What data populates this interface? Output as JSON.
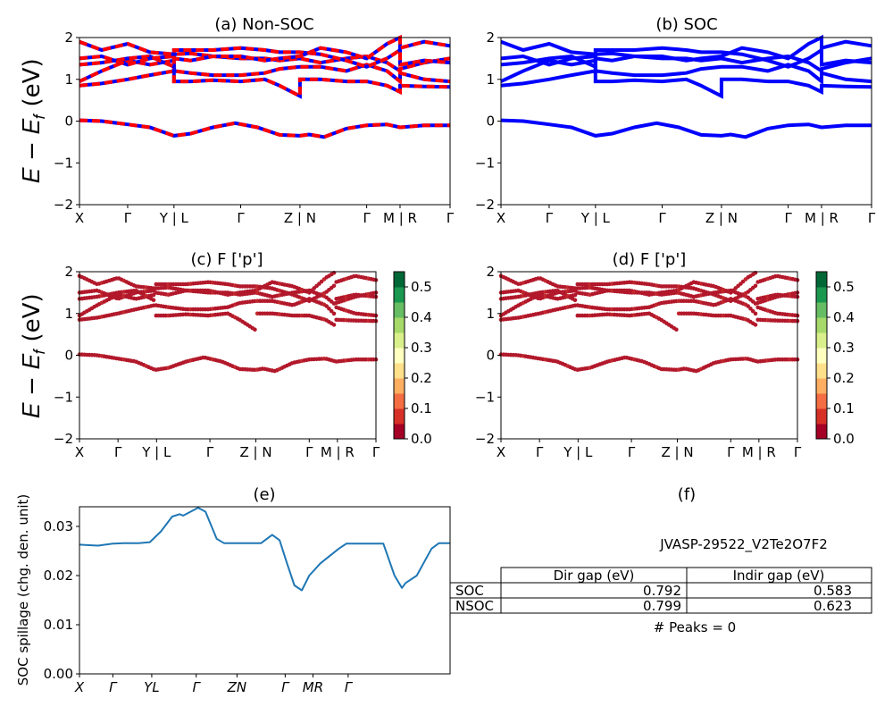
{
  "colors": {
    "nonsoc_primary": "#ff0000",
    "nonsoc_dash": "#0000ff",
    "soc": "#0000ff",
    "spillage": "#1f77b4",
    "colormap": "RdYlGn"
  },
  "chart_data": [
    {
      "id": "a",
      "type": "line",
      "title": "(a) Non-SOC",
      "ylabel": "E − E_f (eV)",
      "ylim": [
        -2,
        2
      ],
      "yticks": [
        "−2",
        "−1",
        "0",
        "1",
        "2"
      ],
      "xticks": [
        {
          "label": "X",
          "pos": 0.0
        },
        {
          "label": "Γ",
          "pos": 0.13
        },
        {
          "label": "Y | L",
          "pos": 0.255
        },
        {
          "label": "Γ",
          "pos": 0.435
        },
        {
          "label": "Z | N",
          "pos": 0.595
        },
        {
          "label": "Γ",
          "pos": 0.775
        },
        {
          "label": "M | R",
          "pos": 0.865
        },
        {
          "label": "Γ",
          "pos": 1.0
        }
      ],
      "series": [
        {
          "values": [
            [
              0,
              0.02
            ],
            [
              0.06,
              0.0
            ],
            [
              0.13,
              -0.08
            ],
            [
              0.19,
              -0.15
            ],
            [
              0.255,
              -0.35
            ],
            [
              0.3,
              -0.3
            ],
            [
              0.36,
              -0.15
            ],
            [
              0.42,
              -0.05
            ],
            [
              0.48,
              -0.15
            ],
            [
              0.54,
              -0.33
            ],
            [
              0.595,
              -0.35
            ],
            [
              0.62,
              -0.32
            ],
            [
              0.66,
              -0.38
            ],
            [
              0.72,
              -0.18
            ],
            [
              0.775,
              -0.1
            ],
            [
              0.83,
              -0.08
            ],
            [
              0.865,
              -0.15
            ],
            [
              0.93,
              -0.1
            ],
            [
              1.0,
              -0.1
            ]
          ]
        },
        {
          "values": [
            [
              0,
              0.85
            ],
            [
              0.06,
              0.9
            ],
            [
              0.13,
              1.0
            ],
            [
              0.19,
              1.1
            ],
            [
              0.255,
              1.2
            ],
            [
              0.255,
              0.95
            ],
            [
              0.3,
              0.95
            ],
            [
              0.36,
              0.98
            ],
            [
              0.435,
              0.95
            ],
            [
              0.5,
              1.0
            ],
            [
              0.54,
              0.85
            ],
            [
              0.595,
              0.6
            ],
            [
              0.595,
              1.0
            ],
            [
              0.65,
              1.0
            ],
            [
              0.72,
              0.95
            ],
            [
              0.775,
              0.95
            ],
            [
              0.83,
              0.85
            ],
            [
              0.865,
              0.7
            ],
            [
              0.865,
              0.85
            ],
            [
              0.93,
              0.83
            ],
            [
              1.0,
              0.82
            ]
          ]
        },
        {
          "values": [
            [
              0,
              0.95
            ],
            [
              0.06,
              1.2
            ],
            [
              0.13,
              1.45
            ],
            [
              0.19,
              1.35
            ],
            [
              0.255,
              1.45
            ],
            [
              0.255,
              1.2
            ],
            [
              0.3,
              1.15
            ],
            [
              0.36,
              1.1
            ],
            [
              0.435,
              1.1
            ],
            [
              0.5,
              1.15
            ],
            [
              0.54,
              1.25
            ],
            [
              0.595,
              1.3
            ],
            [
              0.65,
              1.3
            ],
            [
              0.72,
              1.2
            ],
            [
              0.775,
              1.35
            ],
            [
              0.83,
              1.2
            ],
            [
              0.865,
              0.95
            ],
            [
              0.865,
              1.15
            ],
            [
              0.93,
              1.0
            ],
            [
              1.0,
              0.95
            ]
          ]
        },
        {
          "values": [
            [
              0,
              1.35
            ],
            [
              0.06,
              1.4
            ],
            [
              0.13,
              1.5
            ],
            [
              0.19,
              1.55
            ],
            [
              0.255,
              1.3
            ],
            [
              0.255,
              1.6
            ],
            [
              0.3,
              1.62
            ],
            [
              0.36,
              1.55
            ],
            [
              0.435,
              1.5
            ],
            [
              0.5,
              1.5
            ],
            [
              0.54,
              1.45
            ],
            [
              0.595,
              1.5
            ],
            [
              0.65,
              1.4
            ],
            [
              0.72,
              1.5
            ],
            [
              0.775,
              1.55
            ],
            [
              0.83,
              1.4
            ],
            [
              0.865,
              1.2
            ],
            [
              0.865,
              1.25
            ],
            [
              0.93,
              1.4
            ],
            [
              1.0,
              1.5
            ]
          ]
        },
        {
          "values": [
            [
              0,
              1.5
            ],
            [
              0.06,
              1.55
            ],
            [
              0.13,
              1.35
            ],
            [
              0.19,
              1.5
            ],
            [
              0.255,
              1.55
            ],
            [
              0.255,
              1.7
            ],
            [
              0.3,
              1.7
            ],
            [
              0.36,
              1.7
            ],
            [
              0.435,
              1.75
            ],
            [
              0.5,
              1.7
            ],
            [
              0.54,
              1.65
            ],
            [
              0.595,
              1.65
            ],
            [
              0.65,
              1.6
            ],
            [
              0.72,
              1.45
            ],
            [
              0.775,
              1.3
            ],
            [
              0.83,
              1.5
            ],
            [
              0.865,
              1.7
            ],
            [
              0.865,
              1.35
            ],
            [
              0.93,
              1.45
            ],
            [
              1.0,
              1.4
            ]
          ]
        },
        {
          "values": [
            [
              0,
              1.9
            ],
            [
              0.06,
              1.7
            ],
            [
              0.13,
              1.85
            ],
            [
              0.19,
              1.65
            ],
            [
              0.255,
              1.6
            ],
            [
              0.255,
              1.5
            ],
            [
              0.3,
              1.45
            ],
            [
              0.36,
              1.55
            ],
            [
              0.435,
              1.55
            ],
            [
              0.5,
              1.45
            ],
            [
              0.54,
              1.5
            ],
            [
              0.595,
              1.55
            ],
            [
              0.65,
              1.75
            ],
            [
              0.72,
              1.65
            ],
            [
              0.775,
              1.5
            ],
            [
              0.83,
              1.85
            ],
            [
              0.865,
              2.0
            ],
            [
              0.865,
              1.75
            ],
            [
              0.93,
              1.9
            ],
            [
              1.0,
              1.8
            ]
          ]
        }
      ]
    },
    {
      "id": "b",
      "type": "line",
      "title": "(b) SOC",
      "ylim": [
        -2,
        2
      ],
      "yticks": [
        "−2",
        "−1",
        "0",
        "1",
        "2"
      ],
      "xticks": [
        {
          "label": "X",
          "pos": 0.0
        },
        {
          "label": "Γ",
          "pos": 0.13
        },
        {
          "label": "Y | L",
          "pos": 0.255
        },
        {
          "label": "Γ",
          "pos": 0.435
        },
        {
          "label": "Z | N",
          "pos": 0.595
        },
        {
          "label": "Γ",
          "pos": 0.775
        },
        {
          "label": "M | R",
          "pos": 0.865
        },
        {
          "label": "Γ",
          "pos": 1.0
        }
      ]
    },
    {
      "id": "c",
      "type": "scatter",
      "title": "(c)  F ['p']",
      "ylabel": "E − E_f (eV)",
      "ylim": [
        -2,
        2
      ],
      "yticks": [
        "−2",
        "−1",
        "0",
        "1",
        "2"
      ],
      "colorbar": {
        "min": 0.0,
        "max": 0.55,
        "ticks": [
          "0.0",
          "0.1",
          "0.2",
          "0.3",
          "0.4",
          "0.5"
        ]
      },
      "xticks": [
        {
          "label": "X",
          "pos": 0.0
        },
        {
          "label": "Γ",
          "pos": 0.13
        },
        {
          "label": "Y | L",
          "pos": 0.26
        },
        {
          "label": "Γ",
          "pos": 0.44
        },
        {
          "label": "Z | N",
          "pos": 0.595
        },
        {
          "label": "Γ",
          "pos": 0.775
        },
        {
          "label": "M | R",
          "pos": 0.87
        },
        {
          "label": "Γ",
          "pos": 1.0
        }
      ]
    },
    {
      "id": "d",
      "type": "scatter",
      "title": "(d) F ['p']",
      "ylim": [
        -2,
        2
      ],
      "yticks": [
        "−2",
        "−1",
        "0",
        "1",
        "2"
      ],
      "colorbar": {
        "min": 0.0,
        "max": 0.55,
        "ticks": [
          "0.0",
          "0.1",
          "0.2",
          "0.3",
          "0.4",
          "0.5"
        ]
      },
      "xticks": [
        {
          "label": "X",
          "pos": 0.0
        },
        {
          "label": "Γ",
          "pos": 0.13
        },
        {
          "label": "Y | L",
          "pos": 0.26
        },
        {
          "label": "Γ",
          "pos": 0.44
        },
        {
          "label": "Z | N",
          "pos": 0.595
        },
        {
          "label": "Γ",
          "pos": 0.775
        },
        {
          "label": "M | R",
          "pos": 0.87
        },
        {
          "label": "Γ",
          "pos": 1.0
        }
      ]
    },
    {
      "id": "e",
      "type": "line",
      "title": "(e)",
      "ylabel": "SOC spillage (chg. den. unit)",
      "ylim": [
        0,
        0.034
      ],
      "yticks": [
        "0.00",
        "0.01",
        "0.02",
        "0.03"
      ],
      "xticks": [
        {
          "label": "X",
          "pos": 0.0
        },
        {
          "label": "Γ",
          "pos": 0.09
        },
        {
          "label": "YL",
          "pos": 0.195
        },
        {
          "label": "Γ",
          "pos": 0.315
        },
        {
          "label": "ZN",
          "pos": 0.425
        },
        {
          "label": "Γ",
          "pos": 0.555
        },
        {
          "label": "MR",
          "pos": 0.63
        },
        {
          "label": "Γ",
          "pos": 0.725
        }
      ],
      "series": [
        {
          "values": [
            [
              0,
              0.0263
            ],
            [
              0.02,
              0.0262
            ],
            [
              0.05,
              0.0261
            ],
            [
              0.09,
              0.0265
            ],
            [
              0.12,
              0.0266
            ],
            [
              0.16,
              0.0266
            ],
            [
              0.19,
              0.0268
            ],
            [
              0.22,
              0.029
            ],
            [
              0.25,
              0.032
            ],
            [
              0.27,
              0.0325
            ],
            [
              0.28,
              0.0322
            ],
            [
              0.3,
              0.033
            ],
            [
              0.32,
              0.0338
            ],
            [
              0.34,
              0.033
            ],
            [
              0.37,
              0.0275
            ],
            [
              0.39,
              0.0266
            ],
            [
              0.45,
              0.0266
            ],
            [
              0.49,
              0.0266
            ],
            [
              0.52,
              0.0283
            ],
            [
              0.54,
              0.0272
            ],
            [
              0.56,
              0.0225
            ],
            [
              0.58,
              0.018
            ],
            [
              0.6,
              0.017
            ],
            [
              0.62,
              0.02
            ],
            [
              0.65,
              0.0225
            ],
            [
              0.7,
              0.0255
            ],
            [
              0.72,
              0.0265
            ],
            [
              0.8,
              0.0265
            ],
            [
              0.82,
              0.0265
            ],
            [
              0.85,
              0.02
            ],
            [
              0.87,
              0.0175
            ],
            [
              0.88,
              0.0185
            ],
            [
              0.91,
              0.02
            ],
            [
              0.95,
              0.0255
            ],
            [
              0.97,
              0.0266
            ],
            [
              1.0,
              0.0266
            ]
          ]
        }
      ]
    }
  ],
  "panel_f": {
    "title": "(f)",
    "material": "JVASP-29522_V2Te2O7F2",
    "columns": [
      "Dir gap (eV)",
      "Indir gap (eV)"
    ],
    "rows": [
      {
        "label": "SOC",
        "dir": "0.792",
        "indir": "0.583"
      },
      {
        "label": "NSOC",
        "dir": "0.799",
        "indir": "0.623"
      }
    ],
    "peaks": "# Peaks = 0"
  }
}
